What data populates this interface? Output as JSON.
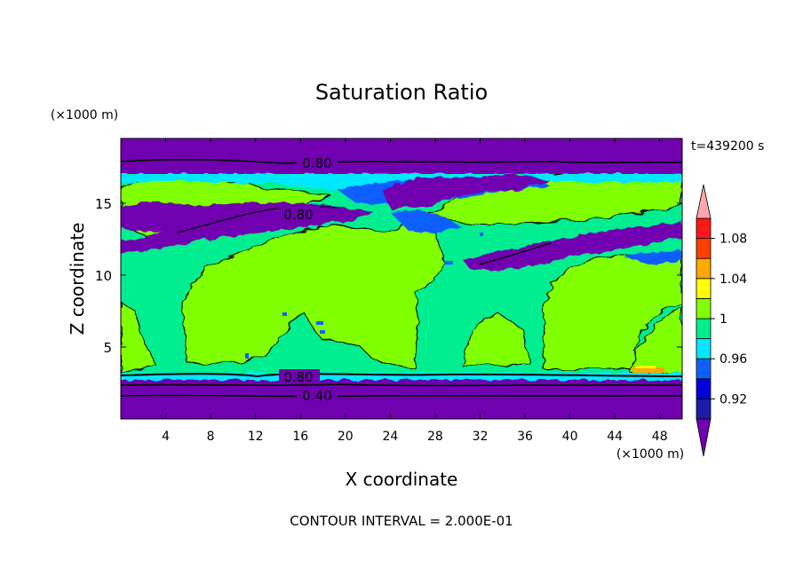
{
  "chart_data": {
    "type": "heatmap",
    "title": "Saturation Ratio",
    "xlabel": "X coordinate",
    "ylabel": "Z coordinate",
    "x_unit": "(×1000 m)",
    "y_unit": "(×1000 m)",
    "time_label": "t=439200 s",
    "footer": "CONTOUR INTERVAL = 2.000E-01",
    "xlim": [
      0,
      50
    ],
    "ylim": [
      0,
      19.5
    ],
    "x_ticks": [
      4,
      8,
      12,
      16,
      20,
      24,
      28,
      32,
      36,
      40,
      44,
      48
    ],
    "y_ticks": [
      5,
      10,
      15
    ],
    "colorbar": {
      "levels": [
        0.9,
        0.92,
        0.94,
        0.96,
        0.98,
        1.0,
        1.02,
        1.04,
        1.06,
        1.08,
        1.1
      ],
      "tick_labels": [
        {
          "value": 0.92,
          "label": "0.92"
        },
        {
          "value": 0.96,
          "label": "0.96"
        },
        {
          "value": 1.0,
          "label": "1"
        },
        {
          "value": 1.04,
          "label": "1.04"
        },
        {
          "value": 1.08,
          "label": "1.08"
        }
      ],
      "colors": {
        "below": "#7000b0",
        "bands": [
          "#1c1ca8",
          "#0000d8",
          "#1060ff",
          "#00e8ff",
          "#00ee90",
          "#80ff00",
          "#ffff00",
          "#ffa800",
          "#ff4000",
          "#ff1818"
        ],
        "above": "#ffa8a8"
      }
    },
    "contour_labels": [
      {
        "text": "0.80",
        "x": 17.8,
        "z": 18.5
      },
      {
        "text": "0.80",
        "x": 15.2,
        "z": 14.6
      },
      {
        "text": "0.80",
        "x": 15.3,
        "z": 2.8
      },
      {
        "text": "0.40",
        "x": 17.0,
        "z": 1.6
      }
    ]
  }
}
